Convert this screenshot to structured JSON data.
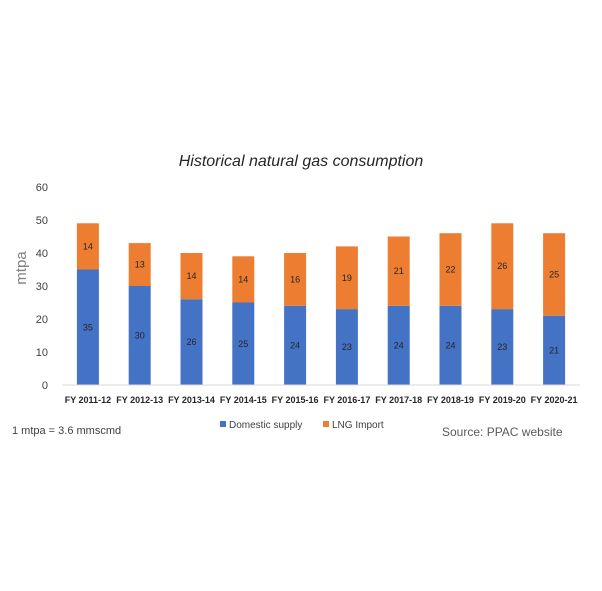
{
  "chart_data": {
    "type": "bar",
    "stacked": true,
    "title": "Historical natural gas consumption",
    "ylabel": "mtpa",
    "xlabel": "",
    "ylim": [
      0,
      60
    ],
    "yticks": [
      0,
      10,
      20,
      30,
      40,
      50,
      60
    ],
    "grid": false,
    "legend_position": "bottom",
    "categories": [
      "FY 2011-12",
      "FY 2012-13",
      "FY 2013-14",
      "FY 2014-15",
      "FY 2015-16",
      "FY 2016-17",
      "FY 2017-18",
      "FY 2018-19",
      "FY 2019-20",
      "FY 2020-21"
    ],
    "series": [
      {
        "name": "Domestic supply",
        "color": "#4472c4",
        "values": [
          35,
          30,
          26,
          25,
          24,
          23,
          24,
          24,
          23,
          21
        ]
      },
      {
        "name": "LNG Import",
        "color": "#ed7d31",
        "values": [
          14,
          13,
          14,
          14,
          16,
          19,
          21,
          22,
          26,
          25
        ]
      }
    ]
  },
  "note": "1 mtpa  = 3.6 mmscmd",
  "source": "Source: PPAC website"
}
